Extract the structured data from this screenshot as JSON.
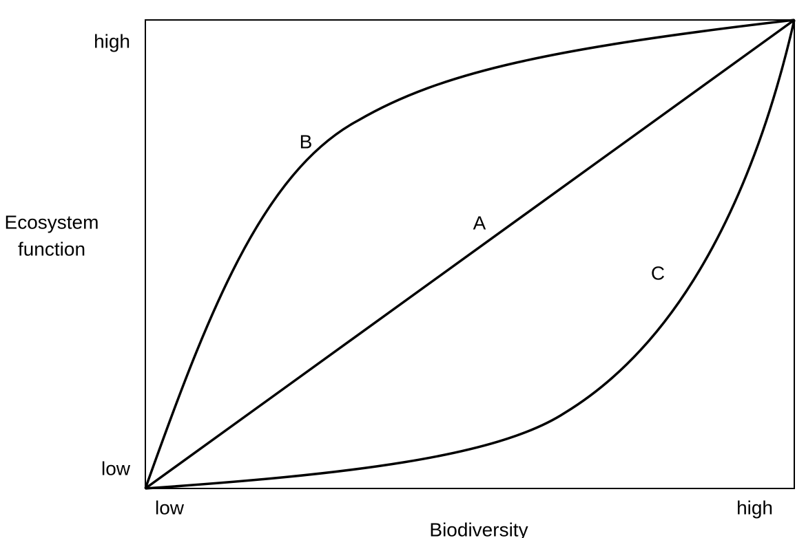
{
  "y_axis": {
    "label_lines": [
      "Ecosystem",
      "function"
    ],
    "high": "high",
    "low": "low"
  },
  "x_axis": {
    "label": "Biodiversity",
    "low": "low",
    "high": "high"
  },
  "curves": [
    {
      "label": "A"
    },
    {
      "label": "B"
    },
    {
      "label": "C"
    }
  ]
}
